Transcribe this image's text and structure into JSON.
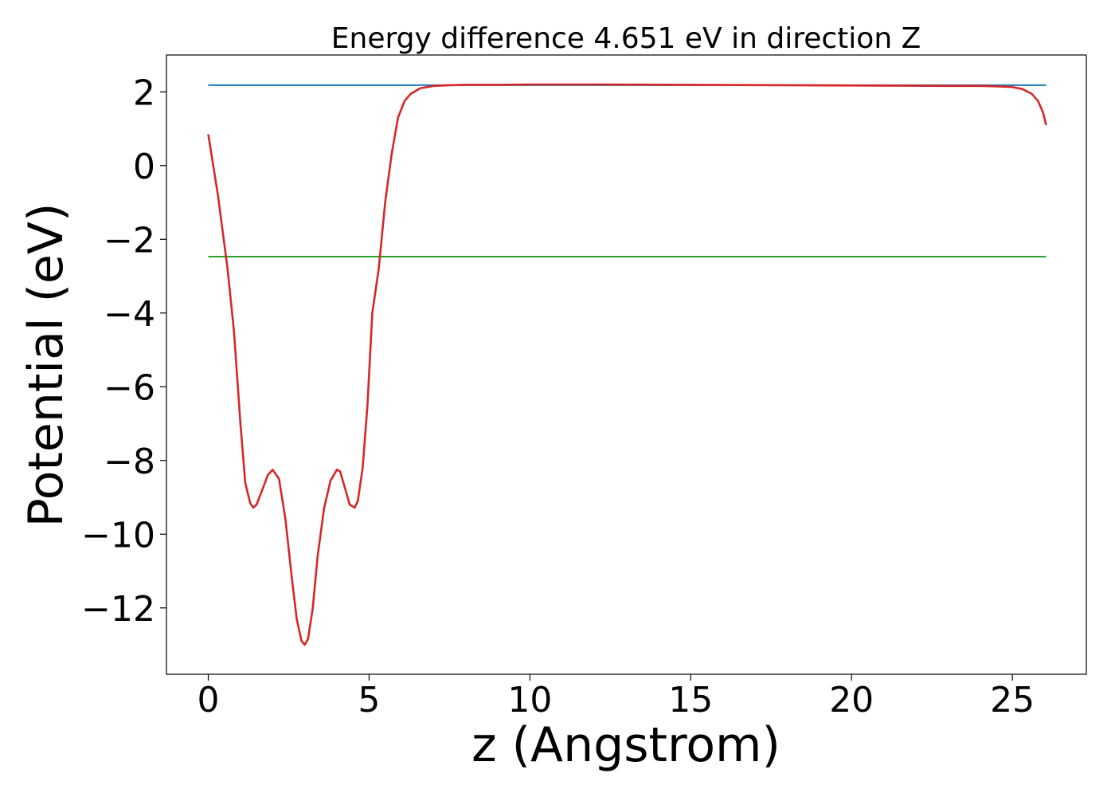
{
  "chart_data": {
    "type": "line",
    "title": "Energy difference 4.651 eV in direction Z",
    "xlabel": "z (Angstrom)",
    "ylabel": "Potential (eV)",
    "xlim": [
      -1.3,
      27.3
    ],
    "ylim": [
      -13.8,
      3.0
    ],
    "x_ticks": [
      0,
      5,
      10,
      15,
      20,
      25
    ],
    "y_ticks": [
      2,
      0,
      -2,
      -4,
      -6,
      -8,
      -10,
      -12
    ],
    "x_tick_labels": [
      "0",
      "5",
      "10",
      "15",
      "20",
      "25"
    ],
    "y_tick_labels": [
      "2",
      "0",
      "−2",
      "−4",
      "−6",
      "−8",
      "−10",
      "−12"
    ],
    "grid": false,
    "series": [
      {
        "color": "#1f77b4",
        "x": [
          0,
          26.05
        ],
        "y": [
          2.18,
          2.18
        ]
      },
      {
        "color": "#2ca02c",
        "x": [
          0,
          26.05
        ],
        "y": [
          -2.47,
          -2.47
        ]
      },
      {
        "color": "#d62728",
        "x": [
          0,
          0.3,
          0.6,
          0.8,
          1.0,
          1.15,
          1.3,
          1.4,
          1.5,
          1.7,
          1.85,
          2.0,
          2.2,
          2.4,
          2.6,
          2.75,
          2.9,
          3.0,
          3.1,
          3.25,
          3.4,
          3.6,
          3.8,
          4.0,
          4.1,
          4.25,
          4.4,
          4.55,
          4.65,
          4.8,
          4.95,
          5.1,
          5.3,
          5.5,
          5.7,
          5.9,
          6.1,
          6.3,
          6.6,
          7.0,
          7.5,
          8.0,
          9.0,
          10.0,
          12.0,
          15.0,
          18.0,
          21.0,
          23.0,
          24.0,
          24.5,
          25.0,
          25.3,
          25.6,
          25.8,
          25.95,
          26.05
        ],
        "y": [
          0.85,
          -0.8,
          -2.8,
          -4.5,
          -7.0,
          -8.6,
          -9.15,
          -9.28,
          -9.2,
          -8.75,
          -8.4,
          -8.25,
          -8.5,
          -9.6,
          -11.2,
          -12.3,
          -12.9,
          -13.0,
          -12.85,
          -12.0,
          -10.6,
          -9.3,
          -8.55,
          -8.25,
          -8.3,
          -8.75,
          -9.2,
          -9.28,
          -9.1,
          -8.2,
          -6.5,
          -4.0,
          -2.8,
          -1.0,
          0.3,
          1.3,
          1.75,
          1.95,
          2.1,
          2.16,
          2.18,
          2.19,
          2.19,
          2.2,
          2.2,
          2.19,
          2.18,
          2.17,
          2.16,
          2.16,
          2.15,
          2.13,
          2.08,
          1.95,
          1.75,
          1.45,
          1.1
        ]
      }
    ]
  }
}
